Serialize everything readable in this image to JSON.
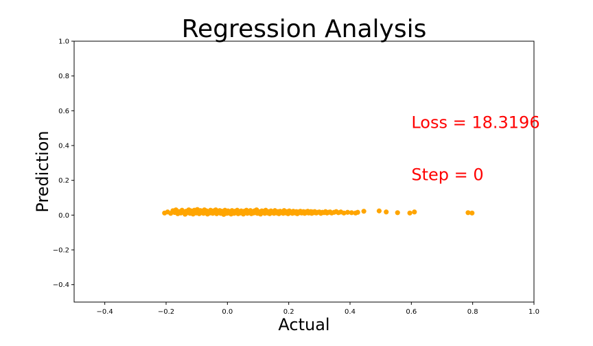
{
  "chart_data": {
    "type": "scatter",
    "title": "Regression Analysis",
    "xlabel": "Actual",
    "ylabel": "Prediction",
    "xlim": [
      -0.5,
      1.0
    ],
    "ylim": [
      -0.5,
      1.0
    ],
    "x_ticks": [
      "−0.4",
      "−0.2",
      "0.0",
      "0.2",
      "0.4",
      "0.6",
      "0.8",
      "1.0"
    ],
    "x_tick_values": [
      -0.4,
      -0.2,
      0.0,
      0.2,
      0.4,
      0.6,
      0.8,
      1.0
    ],
    "y_ticks": [
      "−0.4",
      "−0.2",
      "0.0",
      "0.2",
      "0.4",
      "0.6",
      "0.8",
      "1.0"
    ],
    "y_tick_values": [
      -0.4,
      -0.2,
      0.0,
      0.2,
      0.4,
      0.6,
      0.8,
      1.0
    ],
    "grid": false,
    "point_color": "#ffa500",
    "annotation_color": "#ff0000",
    "annotations": [
      {
        "text": "Loss = 18.3196",
        "x": 0.6,
        "y": 0.5
      },
      {
        "text": "Step = 0",
        "x": 0.6,
        "y": 0.2
      }
    ],
    "points": [
      [
        -0.205,
        0.012
      ],
      [
        -0.195,
        0.018
      ],
      [
        -0.185,
        0.01
      ],
      [
        -0.178,
        0.025
      ],
      [
        -0.172,
        0.015
      ],
      [
        -0.168,
        0.03
      ],
      [
        -0.162,
        0.008
      ],
      [
        -0.158,
        0.02
      ],
      [
        -0.152,
        0.012
      ],
      [
        -0.148,
        0.028
      ],
      [
        -0.142,
        0.018
      ],
      [
        -0.138,
        0.005
      ],
      [
        -0.135,
        0.022
      ],
      [
        -0.13,
        0.014
      ],
      [
        -0.126,
        0.03
      ],
      [
        -0.122,
        0.01
      ],
      [
        -0.118,
        0.024
      ],
      [
        -0.115,
        0.016
      ],
      [
        -0.112,
        0.006
      ],
      [
        -0.108,
        0.028
      ],
      [
        -0.105,
        0.02
      ],
      [
        -0.102,
        0.012
      ],
      [
        -0.098,
        0.032
      ],
      [
        -0.095,
        0.018
      ],
      [
        -0.092,
        0.008
      ],
      [
        -0.088,
        0.026
      ],
      [
        -0.085,
        0.014
      ],
      [
        -0.082,
        0.022
      ],
      [
        -0.078,
        0.01
      ],
      [
        -0.075,
        0.03
      ],
      [
        -0.072,
        0.016
      ],
      [
        -0.068,
        0.024
      ],
      [
        -0.065,
        0.006
      ],
      [
        -0.062,
        0.02
      ],
      [
        -0.058,
        0.012
      ],
      [
        -0.055,
        0.028
      ],
      [
        -0.052,
        0.018
      ],
      [
        -0.048,
        0.01
      ],
      [
        -0.045,
        0.024
      ],
      [
        -0.042,
        0.014
      ],
      [
        -0.038,
        0.03
      ],
      [
        -0.035,
        0.008
      ],
      [
        -0.032,
        0.02
      ],
      [
        -0.028,
        0.016
      ],
      [
        -0.025,
        0.026
      ],
      [
        -0.022,
        0.01
      ],
      [
        -0.018,
        0.022
      ],
      [
        -0.015,
        0.014
      ],
      [
        -0.012,
        0.004
      ],
      [
        -0.008,
        0.028
      ],
      [
        -0.005,
        0.018
      ],
      [
        -0.002,
        0.01
      ],
      [
        0.002,
        0.024
      ],
      [
        0.005,
        0.012
      ],
      [
        0.008,
        0.02
      ],
      [
        0.012,
        0.006
      ],
      [
        0.015,
        0.026
      ],
      [
        0.018,
        0.016
      ],
      [
        0.022,
        0.01
      ],
      [
        0.025,
        0.022
      ],
      [
        0.028,
        0.014
      ],
      [
        0.032,
        0.028
      ],
      [
        0.035,
        0.008
      ],
      [
        0.038,
        0.018
      ],
      [
        0.042,
        0.012
      ],
      [
        0.045,
        0.024
      ],
      [
        0.048,
        0.016
      ],
      [
        0.052,
        0.006
      ],
      [
        0.055,
        0.022
      ],
      [
        0.058,
        0.014
      ],
      [
        0.062,
        0.028
      ],
      [
        0.065,
        0.01
      ],
      [
        0.068,
        0.02
      ],
      [
        0.072,
        0.016
      ],
      [
        0.075,
        0.026
      ],
      [
        0.078,
        0.008
      ],
      [
        0.082,
        0.018
      ],
      [
        0.085,
        0.012
      ],
      [
        0.088,
        0.024
      ],
      [
        0.092,
        0.014
      ],
      [
        0.095,
        0.03
      ],
      [
        0.098,
        0.01
      ],
      [
        0.102,
        0.02
      ],
      [
        0.105,
        0.016
      ],
      [
        0.108,
        0.006
      ],
      [
        0.112,
        0.024
      ],
      [
        0.115,
        0.014
      ],
      [
        0.118,
        0.022
      ],
      [
        0.122,
        0.01
      ],
      [
        0.125,
        0.028
      ],
      [
        0.128,
        0.016
      ],
      [
        0.132,
        0.012
      ],
      [
        0.135,
        0.02
      ],
      [
        0.138,
        0.008
      ],
      [
        0.142,
        0.024
      ],
      [
        0.145,
        0.014
      ],
      [
        0.148,
        0.018
      ],
      [
        0.152,
        0.01
      ],
      [
        0.155,
        0.026
      ],
      [
        0.158,
        0.016
      ],
      [
        0.162,
        0.012
      ],
      [
        0.165,
        0.02
      ],
      [
        0.168,
        0.008
      ],
      [
        0.172,
        0.022
      ],
      [
        0.175,
        0.014
      ],
      [
        0.178,
        0.018
      ],
      [
        0.182,
        0.01
      ],
      [
        0.185,
        0.026
      ],
      [
        0.188,
        0.016
      ],
      [
        0.192,
        0.012
      ],
      [
        0.195,
        0.02
      ],
      [
        0.198,
        0.008
      ],
      [
        0.202,
        0.024
      ],
      [
        0.205,
        0.014
      ],
      [
        0.208,
        0.018
      ],
      [
        0.212,
        0.01
      ],
      [
        0.215,
        0.022
      ],
      [
        0.218,
        0.016
      ],
      [
        0.222,
        0.012
      ],
      [
        0.225,
        0.02
      ],
      [
        0.228,
        0.008
      ],
      [
        0.232,
        0.018
      ],
      [
        0.235,
        0.014
      ],
      [
        0.238,
        0.022
      ],
      [
        0.242,
        0.012
      ],
      [
        0.245,
        0.016
      ],
      [
        0.248,
        0.02
      ],
      [
        0.252,
        0.01
      ],
      [
        0.255,
        0.018
      ],
      [
        0.258,
        0.014
      ],
      [
        0.262,
        0.022
      ],
      [
        0.265,
        0.012
      ],
      [
        0.268,
        0.016
      ],
      [
        0.272,
        0.02
      ],
      [
        0.275,
        0.01
      ],
      [
        0.278,
        0.018
      ],
      [
        0.282,
        0.014
      ],
      [
        0.285,
        0.02
      ],
      [
        0.29,
        0.012
      ],
      [
        0.295,
        0.016
      ],
      [
        0.3,
        0.018
      ],
      [
        0.305,
        0.01
      ],
      [
        0.31,
        0.016
      ],
      [
        0.315,
        0.014
      ],
      [
        0.32,
        0.02
      ],
      [
        0.325,
        0.012
      ],
      [
        0.33,
        0.016
      ],
      [
        0.335,
        0.018
      ],
      [
        0.34,
        0.012
      ],
      [
        0.348,
        0.016
      ],
      [
        0.355,
        0.02
      ],
      [
        0.362,
        0.014
      ],
      [
        0.37,
        0.018
      ],
      [
        0.38,
        0.012
      ],
      [
        0.392,
        0.016
      ],
      [
        0.405,
        0.014
      ],
      [
        0.418,
        0.012
      ],
      [
        0.425,
        0.016
      ],
      [
        0.445,
        0.022
      ],
      [
        0.495,
        0.024
      ],
      [
        0.518,
        0.018
      ],
      [
        0.555,
        0.014
      ],
      [
        0.595,
        0.012
      ],
      [
        0.61,
        0.018
      ],
      [
        0.785,
        0.014
      ],
      [
        0.798,
        0.012
      ]
    ]
  }
}
